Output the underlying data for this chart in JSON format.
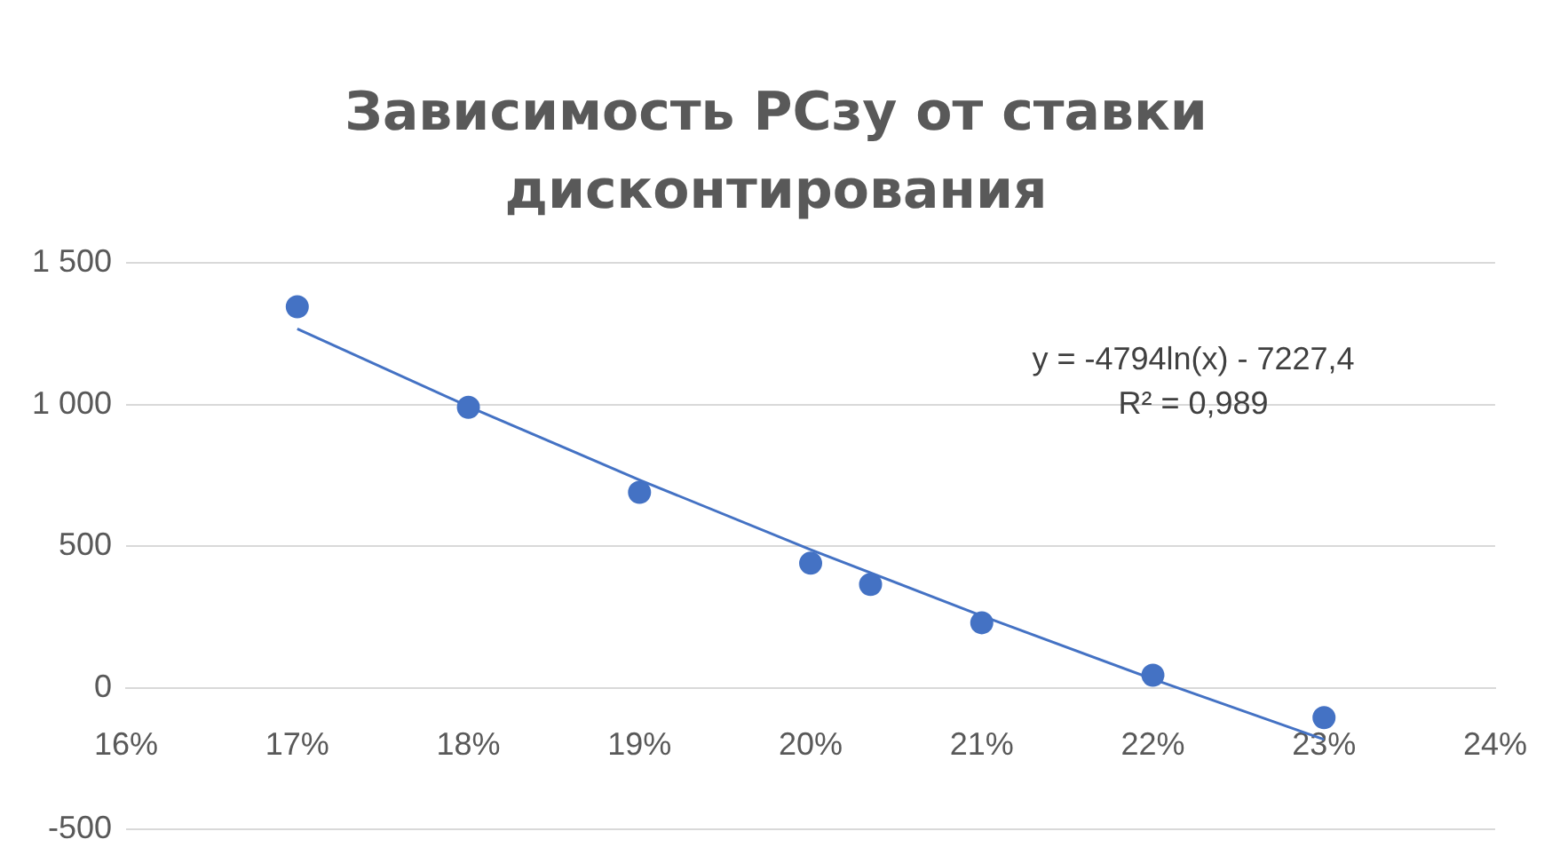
{
  "chart_data": {
    "type": "scatter",
    "title": "Зависимость РСзу от ставки дисконтирования",
    "xlim": [
      16,
      24
    ],
    "xticks": [
      {
        "value": 16,
        "label": "16%"
      },
      {
        "value": 17,
        "label": "17%"
      },
      {
        "value": 18,
        "label": "18%"
      },
      {
        "value": 19,
        "label": "19%"
      },
      {
        "value": 20,
        "label": "20%"
      },
      {
        "value": 21,
        "label": "21%"
      },
      {
        "value": 22,
        "label": "22%"
      },
      {
        "value": 23,
        "label": "23%"
      },
      {
        "value": 24,
        "label": "24%"
      }
    ],
    "ylim": [
      -500,
      1500
    ],
    "yticks": [
      -500,
      0,
      500,
      {
        "value": 1000,
        "label": "1 000"
      },
      {
        "value": 1500,
        "label": "1 500"
      }
    ],
    "grid": "y",
    "legend": false,
    "series": [
      {
        "color": "#4472c4",
        "marker": "circle",
        "x": [
          17,
          18,
          19,
          20,
          20.35,
          21,
          22,
          23
        ],
        "values": [
          1345,
          990,
          690,
          440,
          365,
          230,
          45,
          -105
        ]
      },
      {
        "type": "line",
        "color": "#4472c4",
        "marker": "none",
        "line_style": "solid",
        "x": [
          17,
          18,
          19,
          20,
          21,
          22,
          23
        ],
        "values": [
          1267,
          993,
          734,
          488,
          254,
          31,
          -182
        ]
      }
    ],
    "annotations": [
      "y = -4794ln(x) - 7227,4",
      "R² = 0,989"
    ]
  }
}
